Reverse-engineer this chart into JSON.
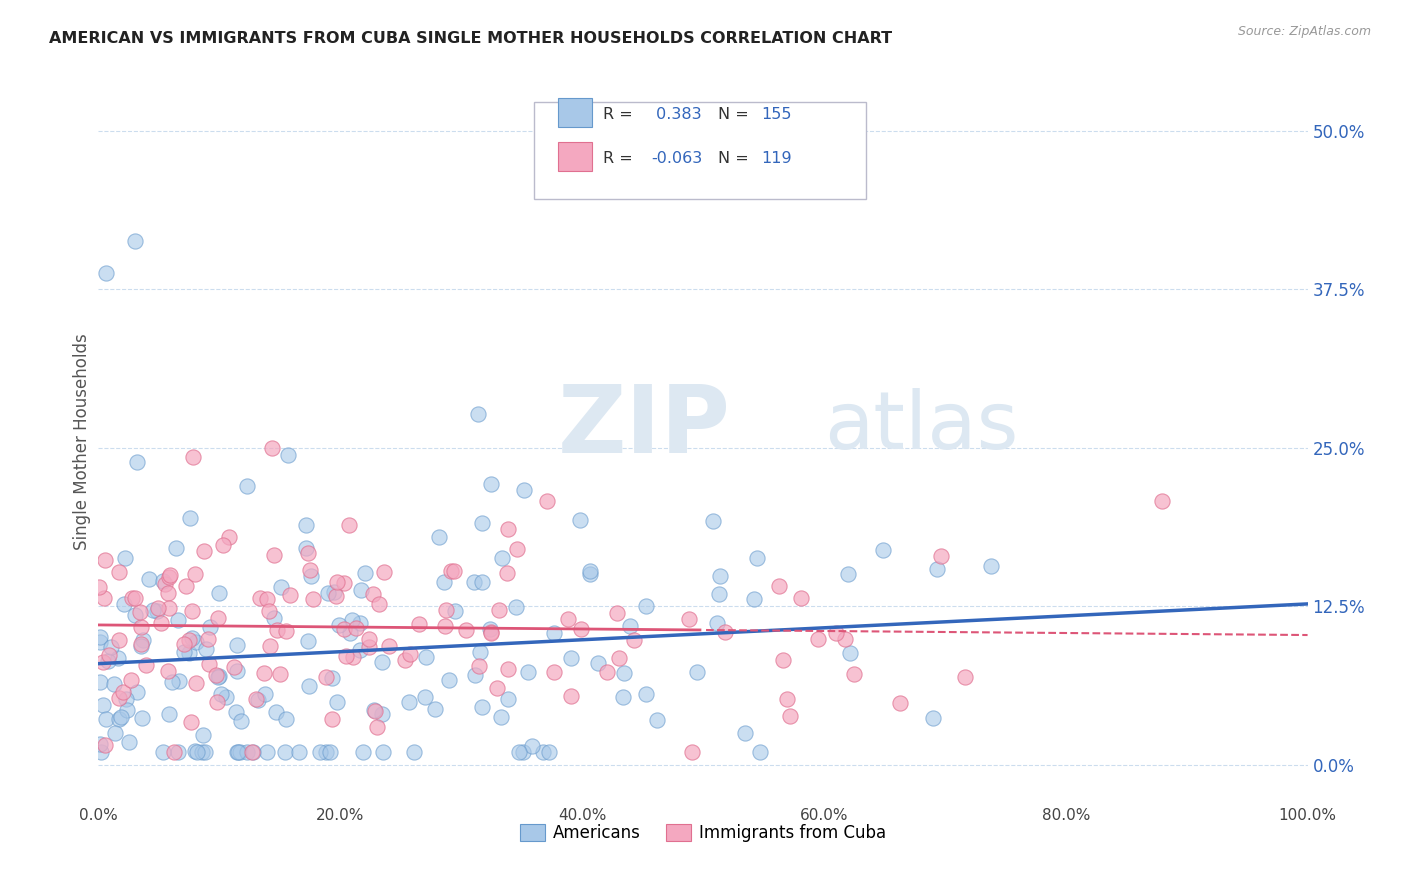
{
  "title": "AMERICAN VS IMMIGRANTS FROM CUBA SINGLE MOTHER HOUSEHOLDS CORRELATION CHART",
  "source": "Source: ZipAtlas.com",
  "ylabel": "Single Mother Households",
  "americans_R": 0.383,
  "americans_N": 155,
  "cuba_R": -0.063,
  "cuba_N": 119,
  "blue_color": "#A8C8E8",
  "pink_color": "#F4A8C0",
  "blue_edge": "#6699CC",
  "pink_edge": "#E07090",
  "blue_line_color": "#3366BB",
  "pink_line_color": "#DD5577",
  "watermark": "ZIPatlas",
  "grid_color": "#CCDDEE",
  "xlim": [
    0,
    1
  ],
  "ylim": [
    -0.03,
    0.54
  ],
  "yticks": [
    0.0,
    0.125,
    0.25,
    0.375,
    0.5
  ],
  "xticks": [
    0.0,
    0.2,
    0.4,
    0.6,
    0.8,
    1.0
  ]
}
